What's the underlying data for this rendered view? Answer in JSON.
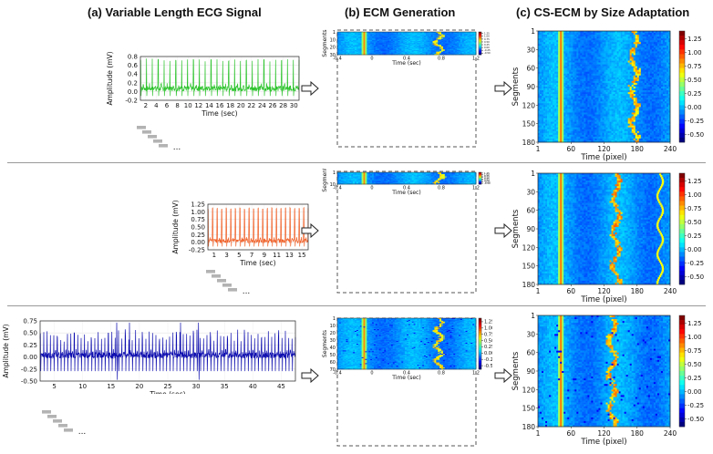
{
  "headers": {
    "a": "(a) Variable Length ECG Signal",
    "b": "(b) ECM Generation",
    "c": "(c) CS-ECM by Size Adaptation"
  },
  "ellipsis": "...",
  "colors": {
    "green": "#2fc42f",
    "orange": "#f0622a",
    "blue": "#1010b0",
    "divider": "#9a9a9a"
  },
  "rows": [
    {
      "ecg": {
        "color": "green",
        "ylabel": "Amplitude (mV)",
        "xlabel": "Time (sec)",
        "xticks": [
          "2",
          "4",
          "6",
          "8",
          "10",
          "12",
          "14",
          "16",
          "18",
          "20",
          "22",
          "24",
          "26",
          "28",
          "30"
        ],
        "yticks": [
          "0.8",
          "0.6",
          "0.4",
          "0.2",
          "0.0",
          "-0.2"
        ],
        "duration_sec": 30,
        "beats": 27,
        "ymin": -0.3,
        "ymax": 0.9
      },
      "ecm": {
        "ylabel": "Segments",
        "xlabel": "Time (sec)",
        "yticks": [
          "1",
          "10",
          "20",
          "30"
        ],
        "xticks": [
          "-0.4",
          "0",
          "0.4",
          "0.8",
          "1.2"
        ],
        "colorbar_ticks": [
          "1.25",
          "1.00",
          "0.75",
          "0.50",
          "0.25",
          "0.00",
          "-0.25",
          "-0.50"
        ],
        "segments": 30
      },
      "cs": {
        "ylabel": "Segments",
        "xlabel": "Time (pixel)",
        "yticks": [
          "1",
          "30",
          "60",
          "90",
          "120",
          "150",
          "180"
        ],
        "xticks": [
          "1",
          "60",
          "120",
          "180",
          "240"
        ],
        "colorbar_ticks": [
          "1.25",
          "1.00",
          "0.75",
          "0.50",
          "0.25",
          "0.00",
          "-0.25",
          "-0.50"
        ]
      }
    },
    {
      "ecg": {
        "color": "orange",
        "ylabel": "Amplitude (mV)",
        "xlabel": "Time (sec)",
        "xticks": [
          "1",
          "3",
          "5",
          "7",
          "9",
          "11",
          "13",
          "15"
        ],
        "yticks": [
          "1.25",
          "1.00",
          "0.75",
          "0.50",
          "0.25",
          "0.00",
          "-0.25"
        ],
        "duration_sec": 15,
        "beats": 22,
        "ymin": -0.3,
        "ymax": 1.35
      },
      "ecm": {
        "ylabel": "Segments",
        "xlabel": "Time (sec)",
        "yticks": [
          "1",
          "10"
        ],
        "xticks": [
          "-0.4",
          "0",
          "0.4",
          "0.8",
          "1.2"
        ],
        "colorbar_ticks": [
          "1.25",
          "1.00",
          "0.75",
          "0.50",
          "0.25",
          "0.00",
          "-0.25",
          "-0.50"
        ],
        "segments": 14
      },
      "cs": {
        "ylabel": "Segments",
        "xlabel": "Time (pixel)",
        "yticks": [
          "1",
          "30",
          "60",
          "90",
          "120",
          "150",
          "180"
        ],
        "xticks": [
          "1",
          "60",
          "120",
          "180",
          "240"
        ],
        "colorbar_ticks": [
          "1.25",
          "1.00",
          "0.75",
          "0.50",
          "0.25",
          "0.00",
          "-0.25",
          "-0.50"
        ]
      }
    },
    {
      "ecg": {
        "color": "blue",
        "ylabel": "Amplitude (mV)",
        "xlabel": "Time (sec)",
        "xticks": [
          "5",
          "10",
          "15",
          "20",
          "25",
          "30",
          "35",
          "40",
          "45"
        ],
        "yticks": [
          "0.75",
          "0.50",
          "0.25",
          "0.00",
          "-0.25",
          "-0.50"
        ],
        "duration_sec": 45,
        "beats": 75,
        "ymin": -0.6,
        "ymax": 0.85
      },
      "ecm": {
        "ylabel": "Segments",
        "xlabel": "Time (sec)",
        "yticks": [
          "1",
          "10",
          "20",
          "30",
          "40",
          "50",
          "60",
          "70"
        ],
        "xticks": [
          "-0.4",
          "0",
          "0.4",
          "0.8",
          "1.2"
        ],
        "colorbar_ticks": [
          "1.25",
          "1.00",
          "0.75",
          "0.50",
          "0.25",
          "0.00",
          "-0.25",
          "-0.50"
        ],
        "segments": 75
      },
      "cs": {
        "ylabel": "Segments",
        "xlabel": "Time (pixel)",
        "yticks": [
          "1",
          "30",
          "60",
          "90",
          "120",
          "150",
          "180"
        ],
        "xticks": [
          "1",
          "60",
          "120",
          "180",
          "240"
        ],
        "colorbar_ticks": [
          "1.25",
          "1.00",
          "0.75",
          "0.50",
          "0.25",
          "0.00",
          "-0.25",
          "-0.50"
        ]
      }
    }
  ]
}
